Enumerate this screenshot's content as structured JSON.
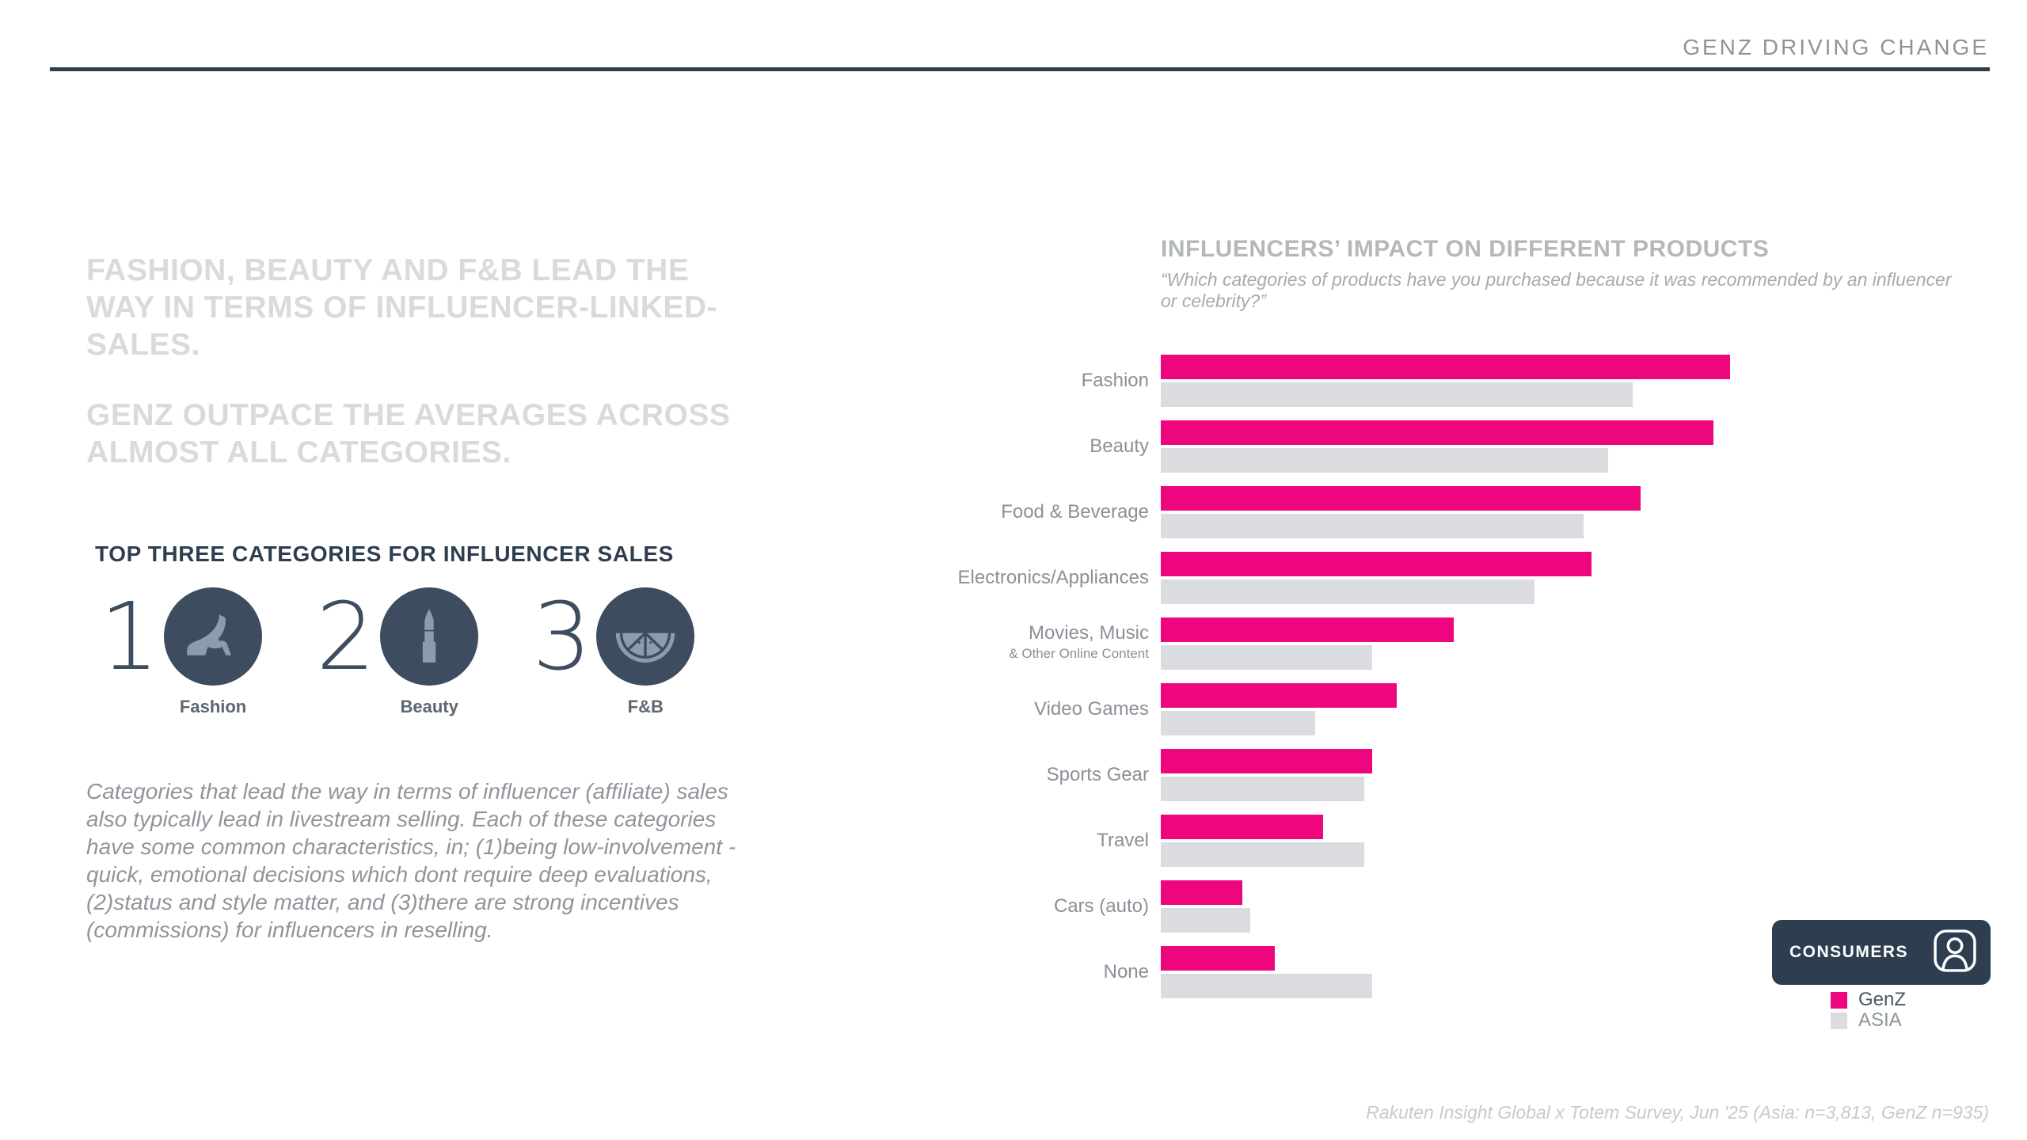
{
  "header": {
    "title": "GENZ DRIVING CHANGE"
  },
  "left": {
    "headline_1": "FASHION, BEAUTY AND F&B LEAD THE WAY IN TERMS OF INFLUENCER-LINKED-SALES.",
    "headline_2": "GENZ OUTPACE THE AVERAGES ACROSS ALMOST ALL CATEGORIES.",
    "section_title": "TOP THREE CATEGORIES FOR INFLUENCER SALES",
    "rankings": [
      {
        "rank": "1",
        "label": "Fashion",
        "icon": "high-heel-icon"
      },
      {
        "rank": "2",
        "label": "Beauty",
        "icon": "lipstick-icon"
      },
      {
        "rank": "3",
        "label": "F&B",
        "icon": "citrus-slice-icon"
      }
    ],
    "body_text": "Categories that lead the way in terms of influencer (affiliate) sales also typically lead in livestream selling. Each of these categories have some common characteristics, in; (1)being low-involvement - quick, emotional decisions which dont require deep evaluations, (2)status and style matter, and (3)there are strong incentives (commissions) for influencers in reselling."
  },
  "chart_data": {
    "type": "bar",
    "orientation": "horizontal",
    "title": "INFLUENCERS’ IMPACT ON DIFFERENT PRODUCTS",
    "subtitle": "“Which categories of products have you purchased because it was recommended by an influencer or celebrity?”",
    "categories": [
      "Fashion",
      "Beauty",
      "Food & Beverage",
      "Electronics/Appliances",
      "Movies, Music & Other Online Content",
      "Video Games",
      "Sports Gear",
      "Travel",
      "Cars (auto)",
      "None"
    ],
    "category_display": [
      {
        "label": "Fashion",
        "sublabel": ""
      },
      {
        "label": "Beauty",
        "sublabel": ""
      },
      {
        "label": "Food & Beverage",
        "sublabel": ""
      },
      {
        "label": "Electronics/Appliances",
        "sublabel": ""
      },
      {
        "label": "Movies, Music",
        "sublabel": "& Other Online Content"
      },
      {
        "label": "Video Games",
        "sublabel": ""
      },
      {
        "label": "Sports Gear",
        "sublabel": ""
      },
      {
        "label": "Travel",
        "sublabel": ""
      },
      {
        "label": "Cars (auto)",
        "sublabel": ""
      },
      {
        "label": "None",
        "sublabel": ""
      }
    ],
    "series": [
      {
        "name": "GenZ",
        "color": "#EE067E",
        "values": [
          70,
          68,
          59,
          53,
          36,
          29,
          26,
          20,
          10,
          14
        ]
      },
      {
        "name": "ASIA",
        "color": "#DBDCE0",
        "values": [
          58,
          55,
          52,
          46,
          26,
          19,
          25,
          25,
          11,
          26
        ]
      }
    ],
    "value_axis_visible": false,
    "xlim": [
      0,
      78
    ],
    "legend_position": "bottom-right",
    "grid": false
  },
  "consumers_badge": {
    "label": "CONSUMERS",
    "icon": "person-icon"
  },
  "source_note": "Rakuten Insight Global x Totem Survey, Jun '25 (Asia: n=3,813, GenZ n=935)",
  "colors": {
    "accent_pink": "#EE067E",
    "bar_gray": "#DBDCE0",
    "navy": "#2E3E50"
  }
}
